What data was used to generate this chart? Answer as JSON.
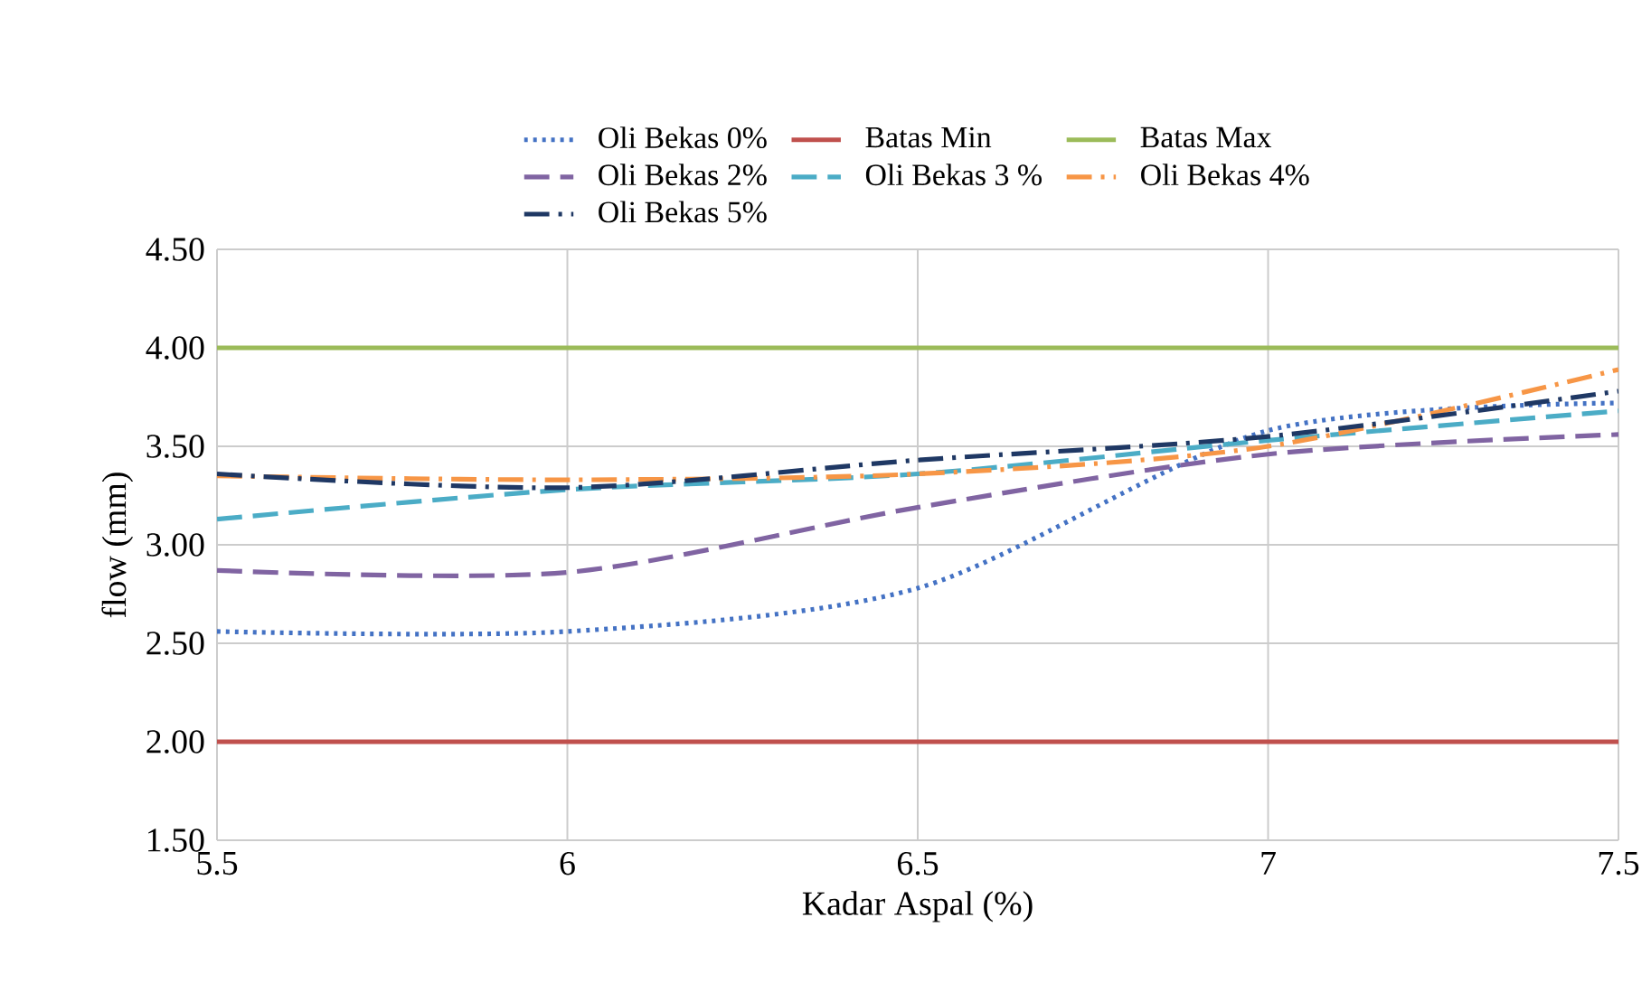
{
  "chart_data": {
    "type": "line",
    "xlabel": "Kadar Aspal (%)",
    "ylabel": "flow (mm)",
    "x": [
      5.5,
      6,
      6.5,
      7,
      7.5
    ],
    "series": [
      {
        "name": "Oli Bekas 0%",
        "color": "#4472c4",
        "line_style": "dotted",
        "values": [
          2.56,
          2.56,
          2.78,
          3.58,
          3.72
        ]
      },
      {
        "name": "Batas Min",
        "color": "#c0504d",
        "line_style": "solid",
        "values": [
          2,
          2,
          2,
          2,
          2
        ]
      },
      {
        "name": "Batas Max",
        "color": "#9bbb59",
        "line_style": "solid",
        "values": [
          4,
          4,
          4,
          4,
          4
        ]
      },
      {
        "name": "Oli Bekas 2%",
        "color": "#8064a2",
        "line_style": "dashed",
        "values": [
          2.87,
          2.86,
          3.19,
          3.46,
          3.56
        ]
      },
      {
        "name": "Oli Bekas 3 %",
        "color": "#4bacc6",
        "line_style": "dashed",
        "values": [
          3.13,
          3.28,
          3.36,
          3.53,
          3.68
        ]
      },
      {
        "name": "Oli Bekas 4%",
        "color": "#f79646",
        "line_style": "dashdot",
        "values": [
          3.35,
          3.33,
          3.36,
          3.5,
          3.89
        ]
      },
      {
        "name": "Oli Bekas 5%",
        "color": "#1f3864",
        "line_style": "dashdot",
        "values": [
          3.36,
          3.29,
          3.43,
          3.55,
          3.78
        ]
      }
    ],
    "xlim": [
      5.5,
      7.5
    ],
    "ylim": [
      1.5,
      4.5
    ],
    "xticks": [
      5.5,
      6,
      6.5,
      7,
      7.5
    ],
    "yticks": [
      {
        "value": 1.5,
        "label": "1.50"
      },
      {
        "value": 2,
        "label": "2.00"
      },
      {
        "value": 2.5,
        "label": "2.50"
      },
      {
        "value": 3,
        "label": "3.00"
      },
      {
        "value": 3.5,
        "label": "3.50"
      },
      {
        "value": 4,
        "label": "4.00"
      },
      {
        "value": 4.5,
        "label": "4.50"
      }
    ],
    "grid": true,
    "legend": "top",
    "marker": "none"
  }
}
